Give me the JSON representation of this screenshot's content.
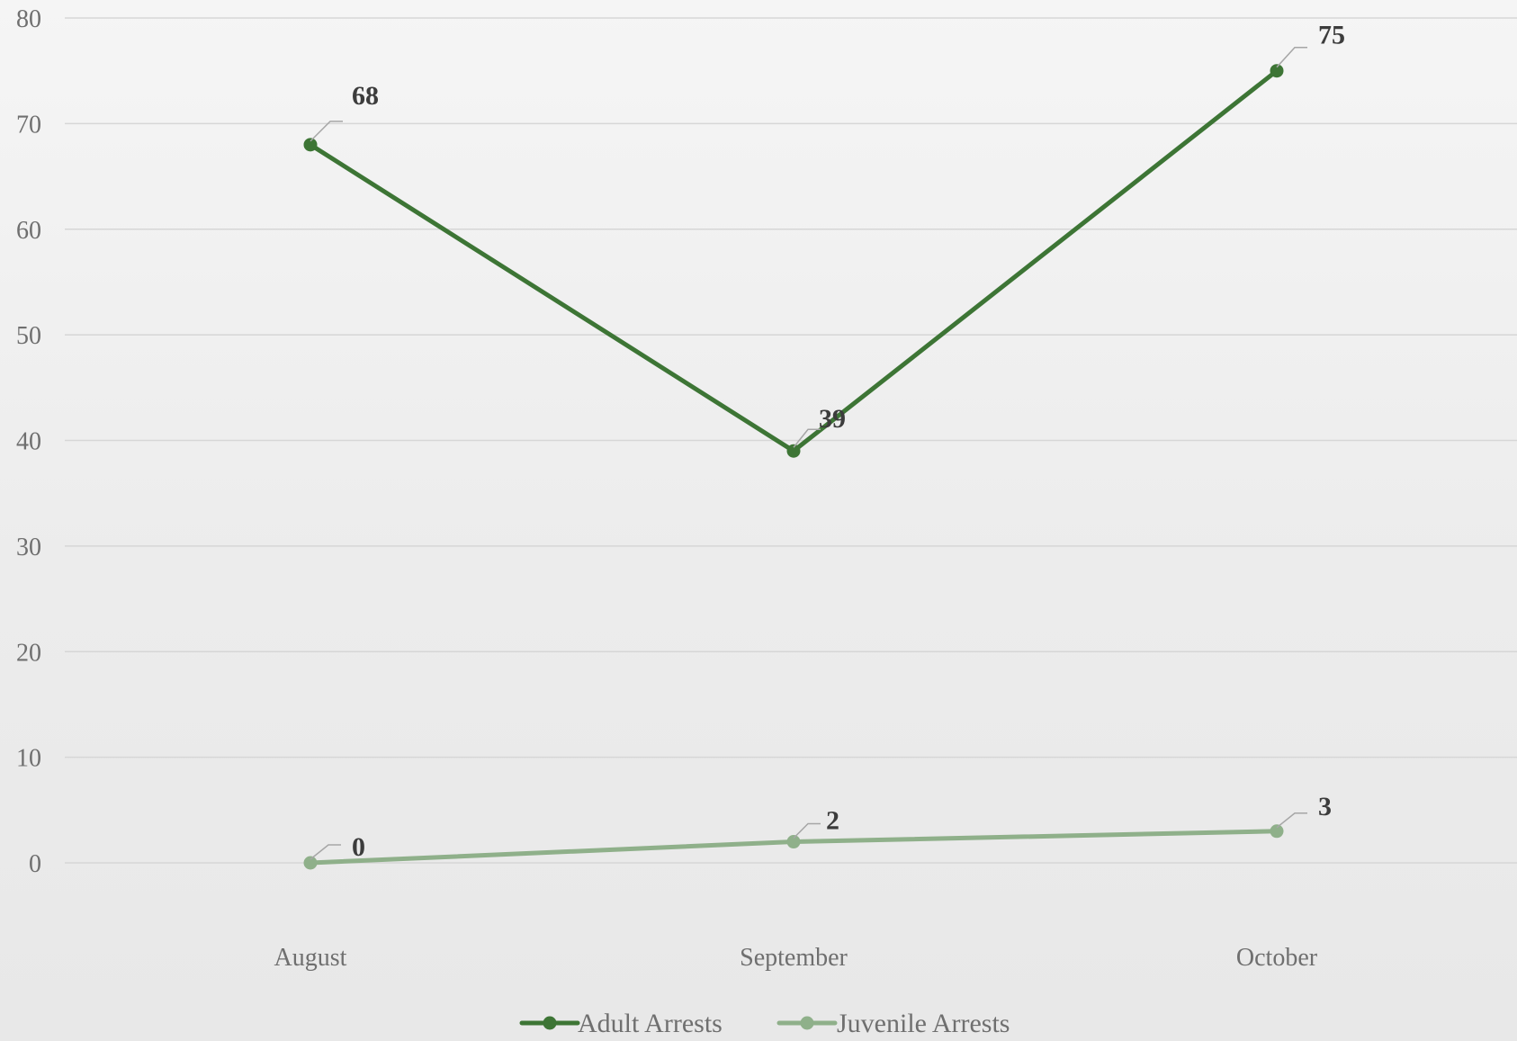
{
  "chart_data": {
    "type": "line",
    "categories": [
      "August",
      "September",
      "October"
    ],
    "series": [
      {
        "name": "Adult Arrests",
        "values": [
          68,
          39,
          75
        ],
        "color": "#3d7535"
      },
      {
        "name": "Juvenile Arrests",
        "values": [
          0,
          2,
          3
        ],
        "color": "#8fb08a"
      }
    ],
    "title": "",
    "xlabel": "",
    "ylabel": "",
    "ylim": [
      0,
      80
    ],
    "yticks": [
      0,
      10,
      20,
      30,
      40,
      50,
      60,
      70,
      80
    ],
    "grid": true,
    "data_labels": true,
    "legend_position": "bottom"
  },
  "colors": {
    "gridline": "#d6d6d6",
    "tick_text": "#6f6f6f",
    "label_text": "#3c3c3c",
    "leader_line": "#a6a6a6"
  }
}
